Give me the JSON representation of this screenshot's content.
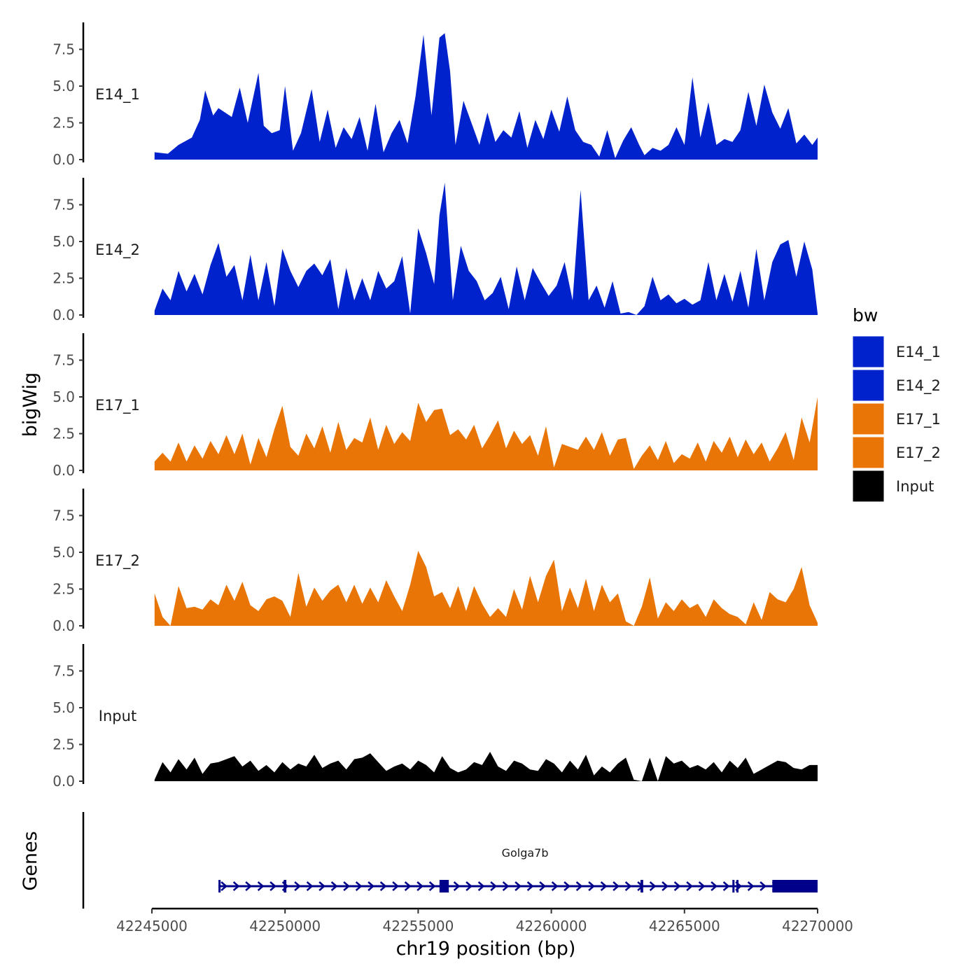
{
  "chart_data": {
    "type": "area",
    "title": "",
    "xlabel": "chr19 position (bp)",
    "ylabel": "bigWig",
    "gene_panel_label": "Genes",
    "xlim": [
      42245000,
      42270000
    ],
    "ylim": [
      0,
      9.5
    ],
    "x_ticks": [
      42245000,
      42250000,
      42255000,
      42260000,
      42265000,
      42270000
    ],
    "x_tick_labels": [
      "42245000",
      "42250000",
      "42255000",
      "42260000",
      "42265000",
      "42270000"
    ],
    "y_ticks": [
      0,
      2.5,
      5,
      7.5
    ],
    "y_tick_labels": [
      "0.0",
      "2.5",
      "5.0",
      "7.5"
    ],
    "legend": {
      "title": "bw",
      "position": "right",
      "entries": [
        {
          "label": "E14_1",
          "color": "#0022CC"
        },
        {
          "label": "E14_2",
          "color": "#0022CC"
        },
        {
          "label": "E17_1",
          "color": "#E87506"
        },
        {
          "label": "E17_2",
          "color": "#E87506"
        },
        {
          "label": "Input",
          "color": "#000000"
        }
      ]
    },
    "series": [
      {
        "name": "E14_1",
        "label": "E14_1",
        "color": "#0022CC",
        "x": [
          42245100,
          42245600,
          42246000,
          42246500,
          42246800,
          42247000,
          42247300,
          42247500,
          42248000,
          42248300,
          42248600,
          42249000,
          42249200,
          42249500,
          42249800,
          42250000,
          42250300,
          42250600,
          42251000,
          42251300,
          42251600,
          42251900,
          42252200,
          42252500,
          42252800,
          42253100,
          42253400,
          42253700,
          42254000,
          42254300,
          42254600,
          42254900,
          42255200,
          42255500,
          42255800,
          42256000,
          42256200,
          42256400,
          42256700,
          42257000,
          42257300,
          42257600,
          42257900,
          42258200,
          42258500,
          42258800,
          42259100,
          42259400,
          42259700,
          42260000,
          42260300,
          42260600,
          42260900,
          42261200,
          42261500,
          42261800,
          42262100,
          42262400,
          42262700,
          42263000,
          42263300,
          42263500,
          42263800,
          42264100,
          42264400,
          42264700,
          42265000,
          42265300,
          42265600,
          42265900,
          42266200,
          42266500,
          42266800,
          42267100,
          42267400,
          42267700,
          42268000,
          42268300,
          42268600,
          42268900,
          42269200,
          42269500,
          42269800,
          42270000
        ],
        "values": [
          0.5,
          0.4,
          1.0,
          1.5,
          2.7,
          4.7,
          3.0,
          3.5,
          2.9,
          4.9,
          2.5,
          5.9,
          2.3,
          1.8,
          2.0,
          5.0,
          0.6,
          1.8,
          4.8,
          1.2,
          3.4,
          0.8,
          2.2,
          1.4,
          2.9,
          0.6,
          3.8,
          0.5,
          1.8,
          2.7,
          1.1,
          4.3,
          8.5,
          3.0,
          8.3,
          8.6,
          6.0,
          1.0,
          4.0,
          2.5,
          1.0,
          3.2,
          1.2,
          2.0,
          1.5,
          3.3,
          0.8,
          2.7,
          1.4,
          3.4,
          1.9,
          4.3,
          2.0,
          1.2,
          1.0,
          0.2,
          2.0,
          0.1,
          1.3,
          2.2,
          1.0,
          0.3,
          0.8,
          0.6,
          1.0,
          2.2,
          1.0,
          5.6,
          1.5,
          3.9,
          1.0,
          1.4,
          1.2,
          2.0,
          4.6,
          2.3,
          5.1,
          3.2,
          2.1,
          3.5,
          1.1,
          1.7,
          1.0,
          1.5
        ]
      },
      {
        "name": "E14_2",
        "label": "E14_2",
        "color": "#0022CC",
        "x": [
          42245100,
          42245400,
          42245700,
          42246000,
          42246300,
          42246600,
          42246900,
          42247200,
          42247500,
          42247800,
          42248100,
          42248400,
          42248700,
          42249000,
          42249300,
          42249600,
          42249900,
          42250200,
          42250500,
          42250800,
          42251100,
          42251400,
          42251700,
          42252000,
          42252300,
          42252600,
          42252900,
          42253200,
          42253500,
          42253800,
          42254100,
          42254400,
          42254700,
          42255000,
          42255300,
          42255600,
          42255800,
          42256000,
          42256300,
          42256600,
          42256900,
          42257200,
          42257500,
          42257800,
          42258100,
          42258400,
          42258700,
          42259000,
          42259300,
          42259600,
          42259900,
          42260200,
          42260500,
          42260800,
          42261100,
          42261400,
          42261700,
          42262000,
          42262300,
          42262600,
          42262900,
          42263200,
          42263500,
          42263800,
          42264100,
          42264400,
          42264700,
          42265000,
          42265300,
          42265600,
          42265900,
          42266200,
          42266500,
          42266800,
          42267100,
          42267400,
          42267700,
          42268000,
          42268300,
          42268600,
          42268900,
          42269200,
          42269500,
          42269800,
          42270000
        ],
        "values": [
          0.3,
          1.8,
          1.0,
          3.0,
          1.6,
          2.8,
          1.4,
          3.4,
          4.9,
          2.6,
          3.4,
          1.0,
          4.1,
          1.0,
          3.6,
          0.6,
          4.5,
          3.0,
          1.9,
          3.0,
          3.5,
          2.7,
          3.8,
          0.4,
          3.2,
          1.0,
          2.5,
          1.0,
          3.0,
          1.8,
          2.3,
          4.0,
          0.1,
          5.9,
          4.2,
          2.1,
          6.8,
          9.0,
          1.0,
          4.7,
          3.0,
          2.3,
          1.0,
          1.5,
          2.6,
          0.4,
          3.3,
          1.0,
          3.2,
          2.2,
          1.3,
          2.0,
          3.6,
          1.0,
          8.5,
          1.0,
          2.0,
          0.5,
          2.3,
          0.1,
          0.2,
          0.0,
          0.6,
          2.6,
          1.0,
          1.4,
          0.8,
          1.1,
          0.7,
          1.0,
          3.6,
          1.0,
          2.8,
          0.9,
          3.0,
          0.5,
          4.5,
          1.0,
          3.6,
          4.8,
          5.1,
          2.6,
          5.0,
          3.1,
          0.1
        ]
      },
      {
        "name": "E17_1",
        "label": "E17_1",
        "color": "#E87506",
        "x": [
          42245100,
          42245400,
          42245700,
          42246000,
          42246300,
          42246600,
          42246900,
          42247200,
          42247500,
          42247800,
          42248100,
          42248400,
          42248700,
          42249000,
          42249300,
          42249600,
          42249900,
          42250200,
          42250500,
          42250800,
          42251100,
          42251400,
          42251700,
          42252000,
          42252300,
          42252600,
          42252900,
          42253200,
          42253500,
          42253800,
          42254100,
          42254400,
          42254700,
          42255000,
          42255300,
          42255600,
          42255900,
          42256200,
          42256500,
          42256800,
          42257100,
          42257400,
          42257700,
          42258000,
          42258300,
          42258600,
          42258900,
          42259200,
          42259500,
          42259800,
          42260100,
          42260400,
          42260700,
          42261000,
          42261300,
          42261600,
          42261900,
          42262200,
          42262500,
          42262800,
          42263100,
          42263400,
          42263700,
          42264000,
          42264300,
          42264600,
          42264900,
          42265200,
          42265500,
          42265800,
          42266100,
          42266400,
          42266700,
          42267000,
          42267300,
          42267600,
          42267900,
          42268200,
          42268500,
          42268800,
          42269100,
          42269400,
          42269700,
          42270000
        ],
        "values": [
          0.6,
          1.2,
          0.6,
          1.9,
          0.6,
          1.7,
          0.8,
          2.0,
          1.1,
          2.4,
          1.1,
          2.5,
          0.4,
          2.2,
          0.9,
          2.8,
          4.4,
          1.6,
          1.0,
          2.5,
          1.5,
          3.0,
          1.2,
          3.3,
          1.4,
          2.2,
          1.9,
          3.6,
          1.4,
          3.1,
          1.8,
          2.6,
          2.0,
          4.6,
          3.3,
          4.1,
          4.2,
          2.4,
          2.8,
          2.1,
          3.1,
          1.5,
          2.4,
          3.4,
          1.5,
          2.7,
          1.8,
          2.4,
          1.0,
          3.0,
          0.2,
          1.8,
          1.6,
          1.4,
          2.3,
          1.4,
          2.6,
          1.0,
          2.1,
          2.2,
          0.1,
          1.0,
          1.7,
          0.7,
          2.0,
          0.5,
          1.1,
          0.8,
          1.9,
          0.6,
          2.0,
          1.2,
          2.3,
          0.9,
          2.1,
          1.1,
          1.9,
          0.6,
          1.5,
          2.6,
          0.7,
          3.6,
          1.9,
          5.0
        ]
      },
      {
        "name": "E17_2",
        "label": "E17_2",
        "color": "#E87506",
        "x": [
          42245100,
          42245400,
          42245700,
          42246000,
          42246300,
          42246600,
          42246900,
          42247200,
          42247500,
          42247800,
          42248100,
          42248400,
          42248700,
          42249000,
          42249300,
          42249600,
          42249900,
          42250200,
          42250500,
          42250800,
          42251100,
          42251400,
          42251700,
          42252000,
          42252300,
          42252600,
          42252900,
          42253200,
          42253500,
          42253800,
          42254100,
          42254400,
          42254700,
          42255000,
          42255300,
          42255600,
          42255900,
          42256200,
          42256500,
          42256800,
          42257100,
          42257400,
          42257700,
          42258000,
          42258300,
          42258600,
          42258900,
          42259200,
          42259500,
          42259800,
          42260100,
          42260400,
          42260700,
          42261000,
          42261300,
          42261600,
          42261900,
          42262200,
          42262500,
          42262800,
          42263100,
          42263400,
          42263700,
          42264000,
          42264300,
          42264600,
          42264900,
          42265200,
          42265500,
          42265800,
          42266100,
          42266400,
          42266700,
          42267000,
          42267300,
          42267600,
          42267900,
          42268200,
          42268500,
          42268800,
          42269100,
          42269400,
          42269700,
          42270000
        ],
        "values": [
          2.2,
          0.6,
          0.0,
          2.7,
          1.2,
          1.3,
          1.1,
          1.8,
          1.4,
          2.8,
          1.7,
          3.0,
          1.4,
          1.0,
          1.8,
          2.0,
          1.7,
          0.6,
          3.6,
          1.3,
          2.6,
          1.7,
          2.4,
          2.8,
          1.6,
          2.8,
          1.5,
          2.6,
          1.6,
          3.1,
          2.0,
          1.0,
          2.8,
          5.1,
          4.0,
          2.0,
          2.3,
          1.2,
          2.7,
          1.0,
          2.7,
          1.5,
          0.6,
          1.2,
          0.6,
          2.5,
          1.1,
          3.4,
          1.6,
          3.4,
          4.5,
          1.0,
          2.6,
          1.2,
          3.2,
          1.0,
          2.8,
          1.6,
          2.2,
          0.3,
          0.0,
          1.3,
          3.3,
          0.5,
          1.6,
          1.0,
          1.8,
          1.2,
          1.5,
          0.6,
          1.8,
          1.2,
          0.8,
          0.6,
          0.1,
          1.6,
          0.4,
          2.3,
          1.8,
          1.6,
          2.5,
          4.0,
          1.4,
          0.2
        ]
      },
      {
        "name": "Input",
        "label": "Input",
        "color": "#000000",
        "x": [
          42245100,
          42245400,
          42245700,
          42246000,
          42246300,
          42246600,
          42246900,
          42247200,
          42247500,
          42247800,
          42248100,
          42248400,
          42248700,
          42249000,
          42249300,
          42249600,
          42249900,
          42250200,
          42250500,
          42250800,
          42251100,
          42251400,
          42251700,
          42252000,
          42252300,
          42252600,
          42252900,
          42253200,
          42253500,
          42253800,
          42254100,
          42254400,
          42254700,
          42255000,
          42255300,
          42255600,
          42255900,
          42256200,
          42256500,
          42256800,
          42257100,
          42257400,
          42257700,
          42258000,
          42258300,
          42258600,
          42258900,
          42259200,
          42259500,
          42259800,
          42260100,
          42260400,
          42260700,
          42261000,
          42261300,
          42261600,
          42261900,
          42262200,
          42262500,
          42262800,
          42263100,
          42263400,
          42263700,
          42264000,
          42264300,
          42264600,
          42264900,
          42265200,
          42265500,
          42265800,
          42266100,
          42266400,
          42266700,
          42267000,
          42267300,
          42267600,
          42267900,
          42268200,
          42268500,
          42268800,
          42269100,
          42269400,
          42269700,
          42270000
        ],
        "values": [
          0.1,
          1.3,
          0.6,
          1.5,
          0.8,
          1.6,
          0.5,
          1.2,
          1.3,
          1.5,
          1.7,
          1.0,
          1.4,
          0.7,
          1.1,
          0.6,
          1.3,
          0.8,
          1.2,
          1.0,
          1.8,
          0.9,
          1.2,
          1.4,
          0.8,
          1.5,
          1.6,
          1.9,
          1.3,
          0.7,
          1.0,
          1.2,
          0.8,
          1.4,
          1.1,
          0.6,
          1.7,
          0.9,
          0.6,
          0.8,
          1.3,
          1.1,
          2.0,
          1.0,
          0.7,
          1.4,
          1.2,
          0.8,
          0.7,
          1.5,
          1.2,
          0.6,
          1.4,
          0.8,
          1.8,
          0.4,
          1.0,
          0.6,
          1.2,
          1.6,
          0.1,
          0.0,
          1.6,
          0.0,
          1.7,
          1.2,
          1.4,
          0.9,
          1.1,
          0.8,
          1.3,
          0.6,
          1.4,
          0.9,
          1.6,
          0.5,
          0.8,
          1.1,
          1.4,
          1.3,
          0.9,
          0.8,
          1.1,
          1.1
        ]
      }
    ],
    "genes": [
      {
        "name": "Golga7b",
        "color": "#00008B",
        "strand": "+",
        "start": 42247500,
        "end": 42270000,
        "exons": [
          {
            "start": 42247500,
            "end": 42247560
          },
          {
            "start": 42249950,
            "end": 42250050
          },
          {
            "start": 42255800,
            "end": 42256150
          },
          {
            "start": 42263350,
            "end": 42263450
          },
          {
            "start": 42266800,
            "end": 42266880
          },
          {
            "start": 42266950,
            "end": 42267020
          },
          {
            "start": 42268300,
            "end": 42270000
          }
        ]
      }
    ]
  }
}
